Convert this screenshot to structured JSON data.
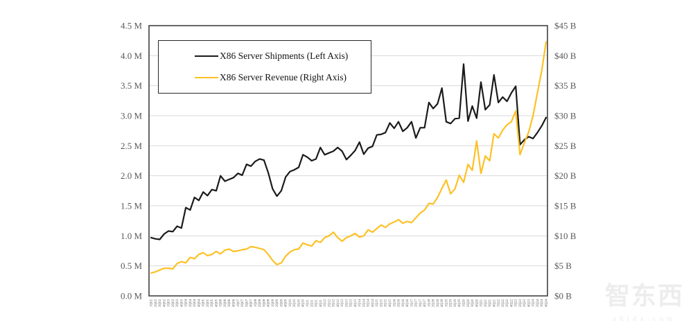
{
  "watermark": {
    "logo": "智东西",
    "url": "zhidx.com"
  },
  "chart_data": {
    "type": "line",
    "title": "",
    "grid": true,
    "legend_position": "top-left-inside",
    "x_labels": [
      "1Q02",
      "2Q02",
      "3Q02",
      "4Q02",
      "1Q03",
      "2Q03",
      "3Q03",
      "4Q03",
      "1Q04",
      "2Q04",
      "3Q04",
      "4Q04",
      "1Q05",
      "2Q05",
      "3Q05",
      "4Q05",
      "1Q06",
      "2Q06",
      "3Q06",
      "4Q06",
      "1Q07",
      "2Q07",
      "3Q07",
      "4Q07",
      "1Q08",
      "2Q08",
      "3Q08",
      "4Q08",
      "1Q09",
      "2Q09",
      "3Q09",
      "4Q09",
      "1Q10",
      "2Q10",
      "3Q10",
      "4Q10",
      "1Q11",
      "2Q11",
      "3Q11",
      "4Q11",
      "1Q12",
      "2Q12",
      "3Q12",
      "4Q12",
      "1Q13",
      "2Q13",
      "3Q13",
      "4Q13",
      "1Q14",
      "2Q14",
      "3Q14",
      "4Q14",
      "1Q15",
      "2Q15",
      "3Q15",
      "4Q15",
      "1Q16",
      "2Q16",
      "3Q16",
      "4Q16",
      "1Q17",
      "2Q17",
      "3Q17",
      "4Q17",
      "1Q18",
      "2Q18",
      "3Q18",
      "4Q18",
      "1Q19",
      "2Q19",
      "3Q19",
      "4Q19",
      "1Q20",
      "2Q20",
      "3Q20",
      "4Q20",
      "1Q21",
      "2Q21",
      "3Q21",
      "4Q21",
      "1Q22",
      "2Q22",
      "3Q22",
      "4Q22",
      "1Q23",
      "2Q23",
      "3Q23",
      "4Q23",
      "1Q24",
      "2Q24",
      "3Q24",
      "4Q24"
    ],
    "left_axis": {
      "min": 0,
      "max": 4.5,
      "unit": "M",
      "ticks": [
        "4.5 M",
        "4.0 M",
        "3.5 M",
        "3.0 M",
        "2.5 M",
        "2.0 M",
        "1.5 M",
        "1.0 M",
        "0.5 M",
        "0.0 M"
      ]
    },
    "right_axis": {
      "min": 0,
      "max": 45,
      "unit": "$B",
      "ticks": [
        "$45 B",
        "$40 B",
        "$35 B",
        "$30 B",
        "$25 B",
        "$20 B",
        "$15 B",
        "$10 B",
        "$5 B",
        "$0 B"
      ]
    },
    "series": [
      {
        "name": "X86 Server Shipments (Left Axis)",
        "axis": "left",
        "color": "#1a1a1a",
        "values": [
          0.97,
          0.95,
          0.94,
          1.03,
          1.08,
          1.07,
          1.16,
          1.13,
          1.47,
          1.43,
          1.64,
          1.59,
          1.73,
          1.67,
          1.77,
          1.75,
          2.0,
          1.91,
          1.94,
          1.97,
          2.04,
          2.01,
          2.19,
          2.16,
          2.24,
          2.28,
          2.26,
          2.05,
          1.78,
          1.66,
          1.75,
          1.98,
          2.07,
          2.1,
          2.14,
          2.35,
          2.31,
          2.25,
          2.28,
          2.47,
          2.35,
          2.38,
          2.41,
          2.47,
          2.41,
          2.27,
          2.34,
          2.42,
          2.56,
          2.36,
          2.46,
          2.49,
          2.68,
          2.69,
          2.72,
          2.88,
          2.79,
          2.9,
          2.74,
          2.8,
          2.9,
          2.63,
          2.8,
          2.8,
          3.22,
          3.12,
          3.2,
          3.46,
          2.9,
          2.87,
          2.95,
          2.96,
          3.86,
          2.91,
          3.16,
          2.96,
          3.56,
          3.1,
          3.18,
          3.68,
          3.22,
          3.31,
          3.24,
          3.38,
          3.49,
          2.52,
          2.6,
          2.65,
          2.62,
          2.72,
          2.83,
          2.97
        ]
      },
      {
        "name": "X86 Server Revenue (Right Axis)",
        "axis": "right",
        "color": "#fcc125",
        "values": [
          3.8,
          4.0,
          4.3,
          4.6,
          4.6,
          4.5,
          5.4,
          5.7,
          5.5,
          6.4,
          6.2,
          6.9,
          7.2,
          6.7,
          6.9,
          7.4,
          7.0,
          7.6,
          7.8,
          7.4,
          7.5,
          7.7,
          7.8,
          8.2,
          8.1,
          7.9,
          7.7,
          6.9,
          5.9,
          5.2,
          5.5,
          6.6,
          7.3,
          7.7,
          7.8,
          8.8,
          8.5,
          8.3,
          9.2,
          8.9,
          9.7,
          10.0,
          10.6,
          9.7,
          9.1,
          9.7,
          10.0,
          10.4,
          9.8,
          10.0,
          11.0,
          10.6,
          11.2,
          11.8,
          11.4,
          12.0,
          12.3,
          12.7,
          12.1,
          12.4,
          12.2,
          13.0,
          13.8,
          14.3,
          15.4,
          15.3,
          16.4,
          17.9,
          19.3,
          17.0,
          17.8,
          20.1,
          18.9,
          21.9,
          20.9,
          25.8,
          20.4,
          23.3,
          22.5,
          27.0,
          26.3,
          27.6,
          28.5,
          29.0,
          30.8,
          23.5,
          25.5,
          27.3,
          30.0,
          33.8,
          37.5,
          42.3
        ]
      }
    ]
  }
}
